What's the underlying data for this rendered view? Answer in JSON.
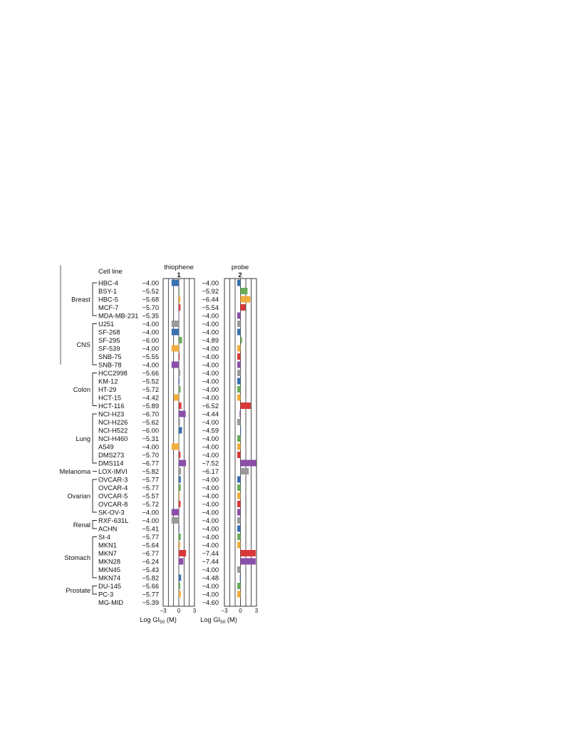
{
  "chart_data": {
    "type": "bar",
    "column_header": "Cell line",
    "xlabel": "Log GI50 (M)",
    "xlim": [
      -3,
      3
    ],
    "xticks": [
      "-3",
      "0",
      "3"
    ],
    "mean_label": "MG-MID",
    "compounds": [
      {
        "name": "thiophene",
        "number": "1",
        "mg_mid": "−5.39"
      },
      {
        "name": "probe",
        "number": "2",
        "mg_mid": "−4.60"
      }
    ],
    "colors": {
      "Breast": "#3a6fb0",
      "CNS": "#6aac5a",
      "Colon": "#f2ad3c",
      "Lung": "#d9383a",
      "Melanoma": "#8a4fa8",
      "Ovarian": "#9a9a9a",
      "Renal": "#3a6fb0",
      "Stomach": "#6aac5a",
      "Prostate": "#f2ad3c"
    },
    "palette": [
      "#3a6fb0",
      "#6aac5a",
      "#f2ad3c",
      "#d9383a",
      "#8a4fa8",
      "#9a9a9a"
    ],
    "groups": [
      {
        "name": "Breast",
        "lines": [
          {
            "cell": "HBC-4",
            "v1": "−4.00",
            "v2": "−4.00"
          },
          {
            "cell": "BSY-1",
            "v1": "−5.52",
            "v2": "−5.92"
          },
          {
            "cell": "HBC-5",
            "v1": "−5.68",
            "v2": "−6.44"
          },
          {
            "cell": "MCF-7",
            "v1": "−5.70",
            "v2": "−5.54"
          },
          {
            "cell": "MDA-MB-231",
            "v1": "−5.35",
            "v2": "−4.00"
          }
        ]
      },
      {
        "name": "CNS",
        "lines": [
          {
            "cell": "U251",
            "v1": "−4.00",
            "v2": "−4.00"
          },
          {
            "cell": "SF-268",
            "v1": "−4.00",
            "v2": "−4.00"
          },
          {
            "cell": "SF-295",
            "v1": "−6.00",
            "v2": "−4.89"
          },
          {
            "cell": "SF-539",
            "v1": "−4.00",
            "v2": "−4.00"
          },
          {
            "cell": "SNB-75",
            "v1": "−5.55",
            "v2": "−4.00"
          },
          {
            "cell": "SNB-78",
            "v1": "−4.00",
            "v2": "−4.00"
          }
        ]
      },
      {
        "name": "Colon",
        "lines": [
          {
            "cell": "HCC2998",
            "v1": "−5.66",
            "v2": "−4.00"
          },
          {
            "cell": "KM-12",
            "v1": "−5.52",
            "v2": "−4.00"
          },
          {
            "cell": "HT-29",
            "v1": "−5.72",
            "v2": "−4.00"
          },
          {
            "cell": "HCT-15",
            "v1": "−4.42",
            "v2": "−4.00"
          },
          {
            "cell": "HCT-116",
            "v1": "−5.89",
            "v2": "−6.52"
          }
        ]
      },
      {
        "name": "Lung",
        "lines": [
          {
            "cell": "NCI-H23",
            "v1": "−6.70",
            "v2": "−4.44"
          },
          {
            "cell": "NCI-H226",
            "v1": "−5.62",
            "v2": "−4.00"
          },
          {
            "cell": "NCI-H522",
            "v1": "−6.00",
            "v2": "−4.59"
          },
          {
            "cell": "NCI-H460",
            "v1": "−5.31",
            "v2": "−4.00"
          },
          {
            "cell": "A549",
            "v1": "−4.00",
            "v2": "−4.00"
          },
          {
            "cell": "DMS273",
            "v1": "−5.70",
            "v2": "−4.00"
          },
          {
            "cell": "DMS114",
            "v1": "−6.77",
            "v2": "−7.52"
          }
        ]
      },
      {
        "name": "Melanoma",
        "lines": [
          {
            "cell": "LOX-IMVI",
            "v1": "−5.82",
            "v2": "−6.17"
          }
        ]
      },
      {
        "name": "Ovarian",
        "lines": [
          {
            "cell": "OVCAR-3",
            "v1": "−5.77",
            "v2": "−4.00"
          },
          {
            "cell": "OVCAR-4",
            "v1": "−5.77",
            "v2": "−4.00"
          },
          {
            "cell": "OVCAR-5",
            "v1": "−5.57",
            "v2": "−4.00"
          },
          {
            "cell": "OVCAR-8",
            "v1": "−5.72",
            "v2": "−4.00"
          },
          {
            "cell": "SK-OV-3",
            "v1": "−4.00",
            "v2": "−4.00"
          }
        ]
      },
      {
        "name": "Renal",
        "lines": [
          {
            "cell": "RXF-631L",
            "v1": "−4.00",
            "v2": "−4.00"
          },
          {
            "cell": "ACHN",
            "v1": "−5.41",
            "v2": "−4.00"
          }
        ]
      },
      {
        "name": "Stomach",
        "lines": [
          {
            "cell": "St-4",
            "v1": "−5.77",
            "v2": "−4.00"
          },
          {
            "cell": "MKN1",
            "v1": "−5.64",
            "v2": "−4.00"
          },
          {
            "cell": "MKN7",
            "v1": "−6.77",
            "v2": "−7.44"
          },
          {
            "cell": "MKN28",
            "v1": "−6.24",
            "v2": "−7.44"
          },
          {
            "cell": "MKN45",
            "v1": "−5.43",
            "v2": "−4.00"
          },
          {
            "cell": "MKN74",
            "v1": "−5.82",
            "v2": "−4.48"
          }
        ]
      },
      {
        "name": "Prostate",
        "lines": [
          {
            "cell": "DU-145",
            "v1": "−5.66",
            "v2": "−4.00"
          },
          {
            "cell": "PC-3",
            "v1": "−5.77",
            "v2": "−4.00"
          }
        ]
      }
    ]
  }
}
